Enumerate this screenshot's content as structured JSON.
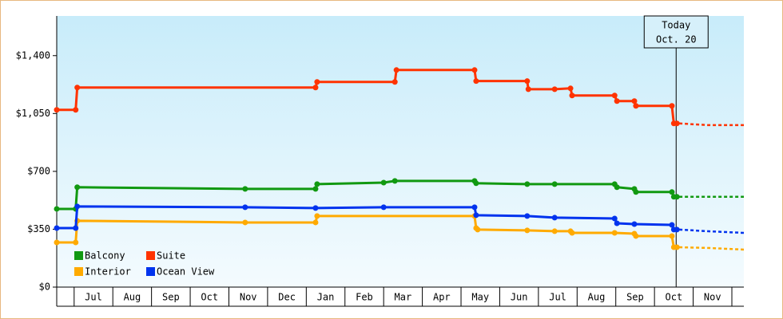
{
  "chart_data": {
    "type": "line",
    "categories": [
      "Jul",
      "Aug",
      "Sep",
      "Oct",
      "Nov",
      "Dec",
      "Jan",
      "Feb",
      "Mar",
      "Apr",
      "May",
      "Jun",
      "Jul",
      "Aug",
      "Sep",
      "Oct",
      "Nov"
    ],
    "xlim": [
      -0.45,
      17.31
    ],
    "ylim": [
      0,
      1640
    ],
    "yticks": [
      {
        "value": 0,
        "label": "$0"
      },
      {
        "value": 350,
        "label": "$350"
      },
      {
        "value": 700,
        "label": "$700"
      },
      {
        "value": 1050,
        "label": "$1,050"
      },
      {
        "value": 1400,
        "label": "$1,400"
      }
    ],
    "today": {
      "x": 15.56,
      "label": [
        "Today",
        "Oct. 20"
      ]
    },
    "series": [
      {
        "name": "Balcony",
        "color": "#119911",
        "x": [
          -0.45,
          0.04,
          0.08,
          4.42,
          6.24,
          6.28,
          8.0,
          8.29,
          10.35,
          10.39,
          11.71,
          12.42,
          13.97,
          14.03,
          14.48,
          14.52,
          15.45,
          15.5,
          15.58
        ],
        "values": [
          473,
          473,
          604,
          594,
          594,
          623,
          632,
          642,
          642,
          628,
          623,
          623,
          623,
          604,
          594,
          575,
          575,
          546,
          546
        ],
        "forecast": {
          "x": [
            15.64,
            17.31
          ],
          "values": [
            546,
            546
          ]
        }
      },
      {
        "name": "Suite",
        "color": "#ff3300",
        "x": [
          -0.45,
          0.04,
          0.08,
          6.24,
          6.28,
          8.29,
          8.33,
          10.35,
          10.39,
          11.71,
          11.74,
          12.42,
          12.83,
          12.87,
          13.97,
          14.03,
          14.48,
          14.52,
          15.45,
          15.5,
          15.58
        ],
        "values": [
          1072,
          1072,
          1207,
          1207,
          1241,
          1241,
          1313,
          1313,
          1246,
          1246,
          1197,
          1197,
          1202,
          1159,
          1159,
          1125,
          1125,
          1096,
          1096,
          990,
          990
        ],
        "forecast": {
          "x": [
            15.64,
            16.36,
            17.31
          ],
          "values": [
            990,
            980,
            980
          ]
        }
      },
      {
        "name": "Interior",
        "color": "#ffaa00",
        "x": [
          -0.45,
          0.04,
          0.08,
          4.42,
          6.24,
          6.28,
          10.35,
          10.39,
          10.43,
          11.71,
          12.42,
          12.83,
          12.87,
          13.97,
          14.48,
          14.52,
          15.45,
          15.5,
          15.58
        ],
        "values": [
          270,
          270,
          401,
          391,
          391,
          430,
          430,
          357,
          348,
          343,
          338,
          338,
          328,
          328,
          323,
          309,
          309,
          241,
          241
        ],
        "forecast": {
          "x": [
            15.64,
            16.36,
            17.31
          ],
          "values": [
            241,
            237,
            227
          ]
        }
      },
      {
        "name": "Ocean View",
        "color": "#0033ee",
        "x": [
          -0.45,
          0.04,
          0.08,
          4.42,
          6.24,
          8.0,
          10.35,
          10.39,
          11.71,
          12.42,
          13.97,
          14.03,
          14.48,
          15.45,
          15.5,
          15.58
        ],
        "values": [
          357,
          357,
          488,
          483,
          478,
          483,
          483,
          435,
          430,
          420,
          415,
          386,
          381,
          376,
          348,
          348
        ],
        "forecast": {
          "x": [
            15.64,
            16.36,
            17.31
          ],
          "values": [
            348,
            338,
            328
          ]
        }
      }
    ]
  }
}
